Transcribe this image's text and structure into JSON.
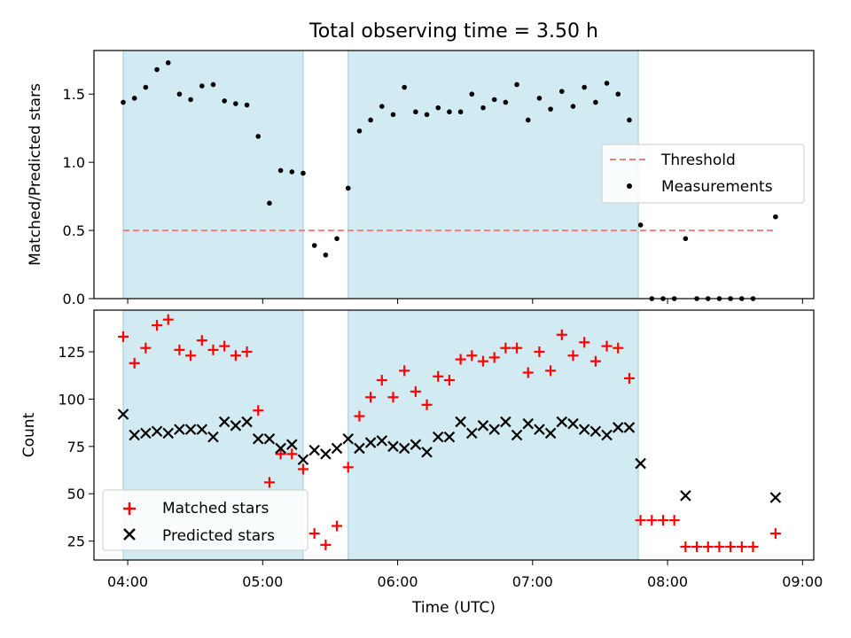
{
  "chart_data": [
    {
      "type": "scatter",
      "title": "Total observing time = 3.50 h",
      "xlabel": "",
      "ylabel": "Matched/Predicted stars",
      "ylim": [
        0,
        1.82
      ],
      "yticks": [
        0.0,
        0.5,
        1.0,
        1.5
      ],
      "ytick_labels": [
        "0.0",
        "0.5",
        "1.0",
        "1.5"
      ],
      "xlim": [
        "03:45",
        "09:05"
      ],
      "shaded_intervals": [
        [
          "03:58",
          "05:18"
        ],
        [
          "05:38",
          "07:47"
        ]
      ],
      "shade_color": "#add8e6",
      "threshold": {
        "name": "Threshold",
        "y": 0.5,
        "x_range": [
          "03:58",
          "08:48"
        ],
        "color": "#f08080",
        "style": "dashed"
      },
      "legend_position": "center-right",
      "series": [
        {
          "name": "Measurements",
          "marker": "dot",
          "color": "#000000",
          "x": [
            "03:58",
            "04:03",
            "04:08",
            "04:13",
            "04:18",
            "04:23",
            "04:28",
            "04:33",
            "04:38",
            "04:43",
            "04:48",
            "04:53",
            "04:58",
            "05:03",
            "05:08",
            "05:13",
            "05:18",
            "05:23",
            "05:28",
            "05:33",
            "05:38",
            "05:43",
            "05:48",
            "05:53",
            "05:58",
            "06:03",
            "06:08",
            "06:13",
            "06:18",
            "06:23",
            "06:28",
            "06:33",
            "06:38",
            "06:43",
            "06:48",
            "06:53",
            "06:58",
            "07:03",
            "07:08",
            "07:13",
            "07:18",
            "07:23",
            "07:28",
            "07:33",
            "07:38",
            "07:43",
            "07:48",
            "07:53",
            "07:58",
            "08:03",
            "08:08",
            "08:13",
            "08:18",
            "08:23",
            "08:28",
            "08:33",
            "08:38",
            "08:48"
          ],
          "y": [
            1.44,
            1.47,
            1.55,
            1.68,
            1.73,
            1.5,
            1.46,
            1.56,
            1.57,
            1.45,
            1.43,
            1.42,
            1.19,
            0.7,
            0.94,
            0.93,
            0.92,
            0.39,
            0.32,
            0.44,
            0.81,
            1.23,
            1.31,
            1.41,
            1.35,
            1.55,
            1.37,
            1.35,
            1.4,
            1.37,
            1.37,
            1.5,
            1.4,
            1.46,
            1.44,
            1.57,
            1.31,
            1.47,
            1.39,
            1.52,
            1.41,
            1.55,
            1.44,
            1.58,
            1.5,
            1.31,
            0.54,
            0.0,
            0.0,
            0.0,
            0.44,
            0.0,
            0.0,
            0.0,
            0.0,
            0.0,
            0.0,
            0.6
          ]
        }
      ]
    },
    {
      "type": "scatter",
      "title": "",
      "xlabel": "Time (UTC)",
      "ylabel": "Count",
      "ylim": [
        15,
        147
      ],
      "yticks": [
        25,
        50,
        75,
        100,
        125
      ],
      "ytick_labels": [
        "25",
        "50",
        "75",
        "100",
        "125"
      ],
      "xlim": [
        "03:45",
        "09:05"
      ],
      "xticks": [
        "04:00",
        "05:00",
        "06:00",
        "07:00",
        "08:00",
        "09:00"
      ],
      "xtick_labels": [
        "04:00",
        "05:00",
        "06:00",
        "07:00",
        "08:00",
        "09:00"
      ],
      "shaded_intervals": [
        [
          "03:58",
          "05:18"
        ],
        [
          "05:38",
          "07:47"
        ]
      ],
      "shade_color": "#add8e6",
      "legend_position": "lower-left",
      "series": [
        {
          "name": "Matched stars",
          "marker": "plus",
          "color": "#ff0000",
          "x": [
            "03:58",
            "04:03",
            "04:08",
            "04:13",
            "04:18",
            "04:23",
            "04:28",
            "04:33",
            "04:38",
            "04:43",
            "04:48",
            "04:53",
            "04:58",
            "05:03",
            "05:08",
            "05:13",
            "05:18",
            "05:23",
            "05:28",
            "05:33",
            "05:38",
            "05:43",
            "05:48",
            "05:53",
            "05:58",
            "06:03",
            "06:08",
            "06:13",
            "06:18",
            "06:23",
            "06:28",
            "06:33",
            "06:38",
            "06:43",
            "06:48",
            "06:53",
            "06:58",
            "07:03",
            "07:08",
            "07:13",
            "07:18",
            "07:23",
            "07:28",
            "07:33",
            "07:38",
            "07:43",
            "07:48",
            "07:53",
            "07:58",
            "08:03",
            "08:08",
            "08:13",
            "08:18",
            "08:23",
            "08:28",
            "08:33",
            "08:38",
            "08:48"
          ],
          "y": [
            133,
            119,
            127,
            139,
            142,
            126,
            123,
            131,
            126,
            128,
            123,
            125,
            94,
            56,
            71,
            71,
            63,
            29,
            23,
            33,
            64,
            91,
            101,
            110,
            101,
            115,
            104,
            97,
            112,
            110,
            121,
            123,
            120,
            122,
            127,
            127,
            114,
            125,
            115,
            134,
            123,
            130,
            120,
            128,
            127,
            111,
            36,
            36,
            36,
            36,
            22,
            22,
            22,
            22,
            22,
            22,
            22,
            29
          ]
        },
        {
          "name": "Predicted stars",
          "marker": "x",
          "color": "#000000",
          "x": [
            "03:58",
            "04:03",
            "04:08",
            "04:13",
            "04:18",
            "04:23",
            "04:28",
            "04:33",
            "04:38",
            "04:43",
            "04:48",
            "04:53",
            "04:58",
            "05:03",
            "05:08",
            "05:13",
            "05:18",
            "05:23",
            "05:28",
            "05:33",
            "05:38",
            "05:43",
            "05:48",
            "05:53",
            "05:58",
            "06:03",
            "06:08",
            "06:13",
            "06:18",
            "06:23",
            "06:28",
            "06:33",
            "06:38",
            "06:43",
            "06:48",
            "06:53",
            "06:58",
            "07:03",
            "07:08",
            "07:13",
            "07:18",
            "07:23",
            "07:28",
            "07:33",
            "07:38",
            "07:43",
            "07:48",
            "08:08",
            "08:48"
          ],
          "y": [
            92,
            81,
            82,
            83,
            82,
            84,
            84,
            84,
            80,
            88,
            86,
            88,
            79,
            79,
            74,
            76,
            68,
            73,
            71,
            74,
            79,
            74,
            77,
            78,
            75,
            74,
            76,
            72,
            80,
            80,
            88,
            82,
            86,
            84,
            88,
            81,
            87,
            84,
            82,
            88,
            87,
            84,
            83,
            81,
            85,
            85,
            66,
            49,
            48
          ]
        }
      ]
    }
  ]
}
